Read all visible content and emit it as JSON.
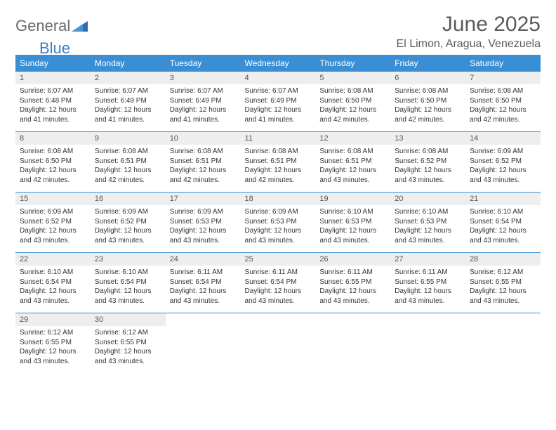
{
  "logo": {
    "general": "General",
    "blue": "Blue"
  },
  "title": "June 2025",
  "location": "El Limon, Aragua, Venezuela",
  "colors": {
    "header_bg": "#3a8fd4",
    "header_text": "#ffffff",
    "daynum_bg": "#eeeeee",
    "text": "#333333",
    "rule": "#3a8fd4",
    "logo_gray": "#6b6b6b",
    "logo_blue": "#3a7fc4"
  },
  "day_names": [
    "Sunday",
    "Monday",
    "Tuesday",
    "Wednesday",
    "Thursday",
    "Friday",
    "Saturday"
  ],
  "weeks": [
    [
      {
        "n": "1",
        "sr": "6:07 AM",
        "ss": "6:48 PM",
        "dh": "12",
        "dm": "41"
      },
      {
        "n": "2",
        "sr": "6:07 AM",
        "ss": "6:49 PM",
        "dh": "12",
        "dm": "41"
      },
      {
        "n": "3",
        "sr": "6:07 AM",
        "ss": "6:49 PM",
        "dh": "12",
        "dm": "41"
      },
      {
        "n": "4",
        "sr": "6:07 AM",
        "ss": "6:49 PM",
        "dh": "12",
        "dm": "41"
      },
      {
        "n": "5",
        "sr": "6:08 AM",
        "ss": "6:50 PM",
        "dh": "12",
        "dm": "42"
      },
      {
        "n": "6",
        "sr": "6:08 AM",
        "ss": "6:50 PM",
        "dh": "12",
        "dm": "42"
      },
      {
        "n": "7",
        "sr": "6:08 AM",
        "ss": "6:50 PM",
        "dh": "12",
        "dm": "42"
      }
    ],
    [
      {
        "n": "8",
        "sr": "6:08 AM",
        "ss": "6:50 PM",
        "dh": "12",
        "dm": "42"
      },
      {
        "n": "9",
        "sr": "6:08 AM",
        "ss": "6:51 PM",
        "dh": "12",
        "dm": "42"
      },
      {
        "n": "10",
        "sr": "6:08 AM",
        "ss": "6:51 PM",
        "dh": "12",
        "dm": "42"
      },
      {
        "n": "11",
        "sr": "6:08 AM",
        "ss": "6:51 PM",
        "dh": "12",
        "dm": "42"
      },
      {
        "n": "12",
        "sr": "6:08 AM",
        "ss": "6:51 PM",
        "dh": "12",
        "dm": "43"
      },
      {
        "n": "13",
        "sr": "6:08 AM",
        "ss": "6:52 PM",
        "dh": "12",
        "dm": "43"
      },
      {
        "n": "14",
        "sr": "6:09 AM",
        "ss": "6:52 PM",
        "dh": "12",
        "dm": "43"
      }
    ],
    [
      {
        "n": "15",
        "sr": "6:09 AM",
        "ss": "6:52 PM",
        "dh": "12",
        "dm": "43"
      },
      {
        "n": "16",
        "sr": "6:09 AM",
        "ss": "6:52 PM",
        "dh": "12",
        "dm": "43"
      },
      {
        "n": "17",
        "sr": "6:09 AM",
        "ss": "6:53 PM",
        "dh": "12",
        "dm": "43"
      },
      {
        "n": "18",
        "sr": "6:09 AM",
        "ss": "6:53 PM",
        "dh": "12",
        "dm": "43"
      },
      {
        "n": "19",
        "sr": "6:10 AM",
        "ss": "6:53 PM",
        "dh": "12",
        "dm": "43"
      },
      {
        "n": "20",
        "sr": "6:10 AM",
        "ss": "6:53 PM",
        "dh": "12",
        "dm": "43"
      },
      {
        "n": "21",
        "sr": "6:10 AM",
        "ss": "6:54 PM",
        "dh": "12",
        "dm": "43"
      }
    ],
    [
      {
        "n": "22",
        "sr": "6:10 AM",
        "ss": "6:54 PM",
        "dh": "12",
        "dm": "43"
      },
      {
        "n": "23",
        "sr": "6:10 AM",
        "ss": "6:54 PM",
        "dh": "12",
        "dm": "43"
      },
      {
        "n": "24",
        "sr": "6:11 AM",
        "ss": "6:54 PM",
        "dh": "12",
        "dm": "43"
      },
      {
        "n": "25",
        "sr": "6:11 AM",
        "ss": "6:54 PM",
        "dh": "12",
        "dm": "43"
      },
      {
        "n": "26",
        "sr": "6:11 AM",
        "ss": "6:55 PM",
        "dh": "12",
        "dm": "43"
      },
      {
        "n": "27",
        "sr": "6:11 AM",
        "ss": "6:55 PM",
        "dh": "12",
        "dm": "43"
      },
      {
        "n": "28",
        "sr": "6:12 AM",
        "ss": "6:55 PM",
        "dh": "12",
        "dm": "43"
      }
    ],
    [
      {
        "n": "29",
        "sr": "6:12 AM",
        "ss": "6:55 PM",
        "dh": "12",
        "dm": "43"
      },
      {
        "n": "30",
        "sr": "6:12 AM",
        "ss": "6:55 PM",
        "dh": "12",
        "dm": "43"
      },
      null,
      null,
      null,
      null,
      null
    ]
  ]
}
